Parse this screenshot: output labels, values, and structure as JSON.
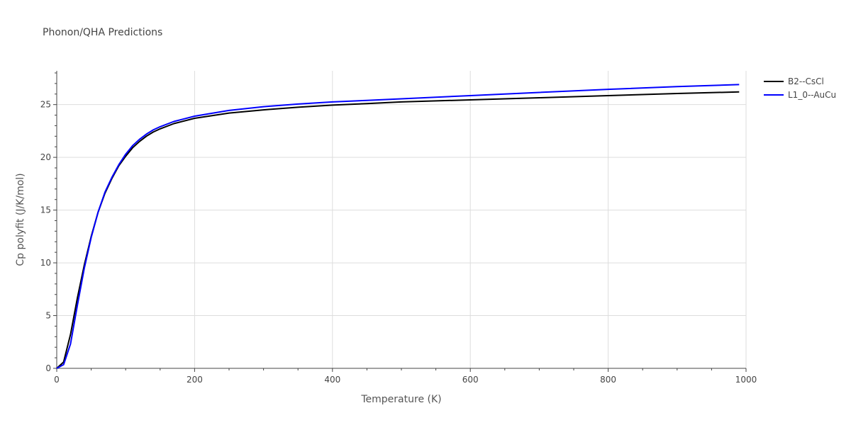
{
  "chart_data": {
    "type": "line",
    "title": "Phonon/QHA Predictions",
    "xlabel": "Temperature (K)",
    "ylabel": "Cp polyfit (J/K/mol)",
    "xlim": [
      0,
      1000
    ],
    "ylim": [
      0,
      28.2
    ],
    "x_ticks": [
      0,
      200,
      400,
      600,
      800,
      1000
    ],
    "x_tick_labels": [
      "0",
      "200",
      "400",
      "600",
      "800",
      "1000"
    ],
    "y_ticks": [
      0,
      5,
      10,
      15,
      20,
      25
    ],
    "y_tick_labels": [
      "0",
      "5",
      "10",
      "15",
      "20",
      "25"
    ],
    "grid": true,
    "legend_position": "top-right outside",
    "series": [
      {
        "name": "B2--CsCl",
        "color": "#000000",
        "x": [
          0,
          10,
          20,
          30,
          40,
          50,
          60,
          70,
          80,
          90,
          100,
          110,
          120,
          130,
          140,
          150,
          170,
          200,
          250,
          300,
          350,
          400,
          450,
          500,
          600,
          700,
          800,
          900,
          990
        ],
        "y": [
          0,
          0.6,
          3.2,
          6.7,
          9.8,
          12.5,
          14.8,
          16.6,
          18.0,
          19.2,
          20.1,
          20.9,
          21.5,
          22.0,
          22.4,
          22.7,
          23.2,
          23.7,
          24.2,
          24.5,
          24.75,
          24.95,
          25.1,
          25.25,
          25.45,
          25.65,
          25.85,
          26.05,
          26.2
        ]
      },
      {
        "name": "L1_0--AuCu",
        "color": "#0000ff",
        "x": [
          0,
          10,
          20,
          30,
          40,
          50,
          60,
          70,
          80,
          90,
          100,
          110,
          120,
          130,
          140,
          150,
          170,
          200,
          250,
          300,
          350,
          400,
          450,
          500,
          600,
          700,
          800,
          900,
          990
        ],
        "y": [
          0,
          0.35,
          2.3,
          6.0,
          9.5,
          12.4,
          14.8,
          16.7,
          18.1,
          19.3,
          20.3,
          21.1,
          21.7,
          22.2,
          22.6,
          22.9,
          23.4,
          23.9,
          24.45,
          24.8,
          25.05,
          25.25,
          25.4,
          25.55,
          25.85,
          26.15,
          26.45,
          26.7,
          26.9
        ]
      }
    ]
  }
}
